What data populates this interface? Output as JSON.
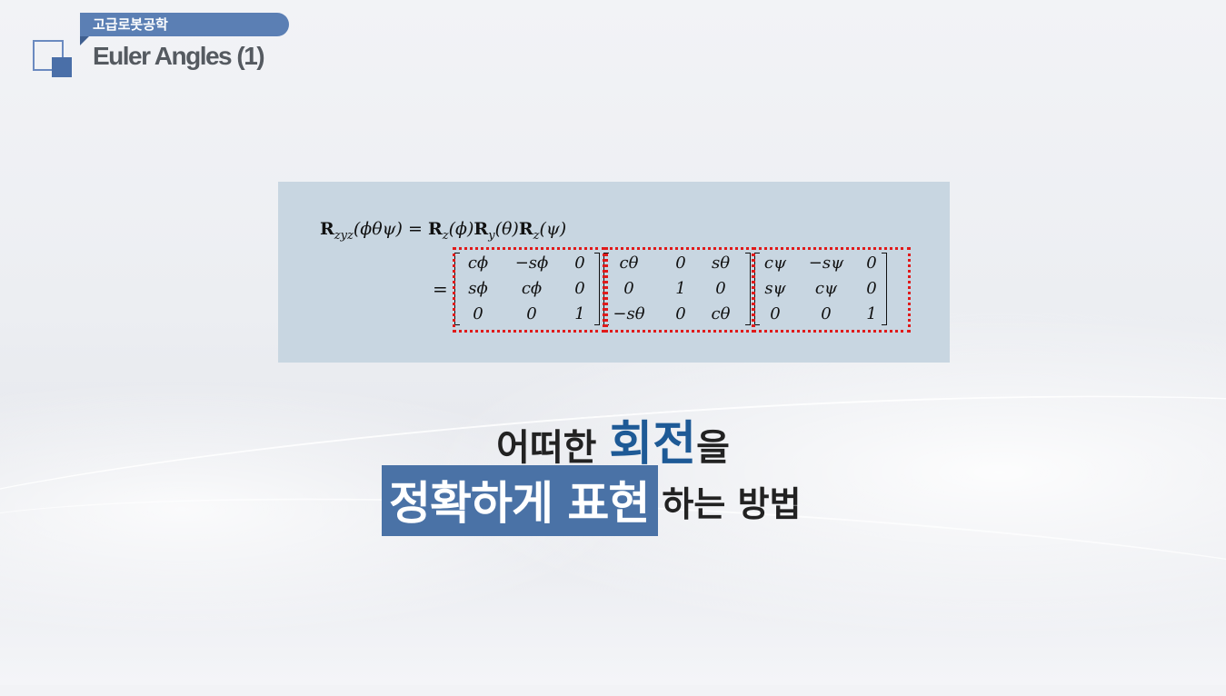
{
  "header": {
    "course_name": "고급로봇공학",
    "slide_title": "Euler Angles (1)"
  },
  "equation": {
    "lhs_symbol": "R",
    "lhs_sub": "zyz",
    "lhs_args": "(ϕθψ)",
    "eq": "=",
    "rhs": [
      {
        "symbol": "R",
        "sub": "z",
        "arg": "(ϕ)"
      },
      {
        "symbol": "R",
        "sub": "y",
        "arg": "(θ)"
      },
      {
        "symbol": "R",
        "sub": "z",
        "arg": "(ψ)"
      }
    ],
    "second_equals": "=",
    "matrices": [
      [
        [
          "cϕ",
          "−sϕ",
          "0"
        ],
        [
          "sϕ",
          "cϕ",
          "0"
        ],
        [
          "0",
          "0",
          "1"
        ]
      ],
      [
        [
          "cθ",
          "0",
          "sθ"
        ],
        [
          "0",
          "1",
          "0"
        ],
        [
          "−sθ",
          "0",
          "cθ"
        ]
      ],
      [
        [
          "cψ",
          "−sψ",
          "0"
        ],
        [
          "sψ",
          "cψ",
          "0"
        ],
        [
          "0",
          "0",
          "1"
        ]
      ]
    ]
  },
  "tagline": {
    "line1_before": "어떠한 ",
    "line1_emphasis": "회전",
    "line1_after": "을",
    "line2_highlight": "정확하게 표현",
    "line2_rest": "하는 방법"
  },
  "colors": {
    "accent_blue": "#4a72a6",
    "emphasis_text": "#1e5a96",
    "equation_bg": "#c8d6e1",
    "dotted_box": "#e01a1a"
  }
}
